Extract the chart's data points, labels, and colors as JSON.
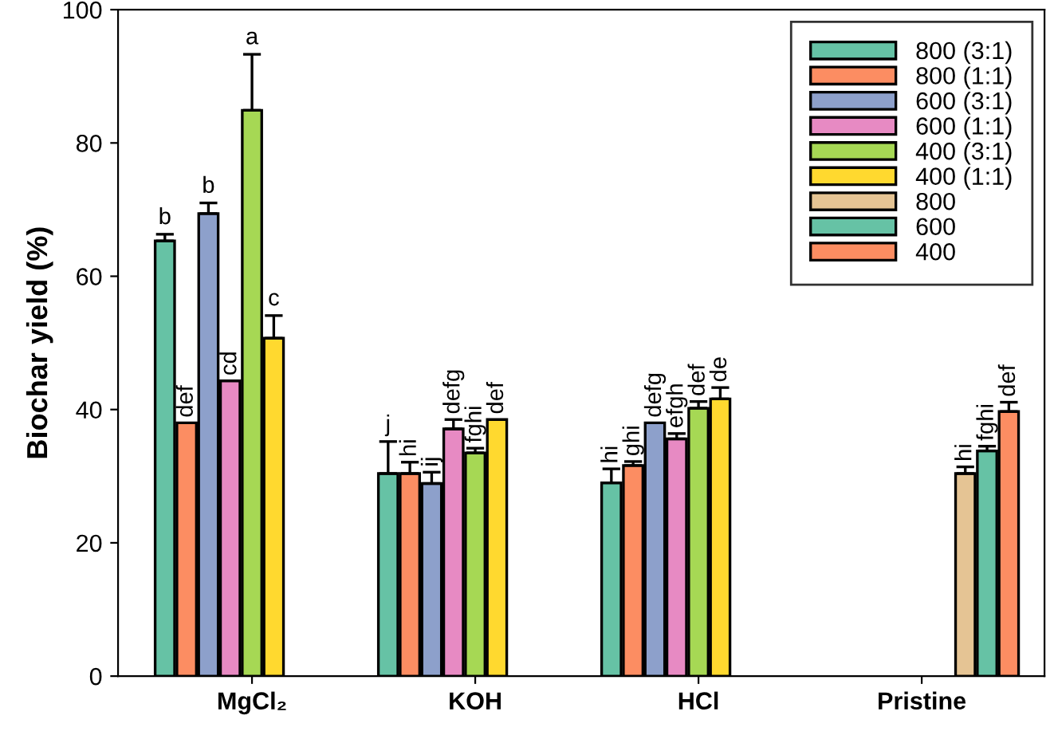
{
  "chart_data": {
    "type": "bar",
    "ylabel": "Biochar yield (%)",
    "categories": [
      "MgCl₂",
      "KOH",
      "HCl",
      "Pristine"
    ],
    "ylim": [
      0,
      100
    ],
    "yticks": [
      0,
      20,
      40,
      60,
      80,
      100
    ],
    "grid": false,
    "legend": "top right",
    "series": [
      {
        "name": "800 (3:1)",
        "color": "#66c2a5",
        "values": [
          65.3,
          30.4,
          29.0,
          null
        ],
        "errors": [
          [
            65.3,
            66.3
          ],
          [
            30.4,
            35.2
          ],
          [
            29.0,
            31.1
          ],
          null
        ],
        "value_labels": [
          "b",
          "j",
          "hi",
          null
        ]
      },
      {
        "name": "800 (1:1)",
        "color": "#fc8d62",
        "values": [
          38.0,
          30.4,
          31.6,
          null
        ],
        "errors": [
          null,
          [
            30.4,
            32.1
          ],
          [
            31.6,
            32.2
          ],
          null
        ],
        "value_labels": [
          "def",
          "hi",
          "ghi",
          null
        ]
      },
      {
        "name": "600 (3:1)",
        "color": "#8da0cb",
        "values": [
          69.4,
          28.9,
          38.0,
          null
        ],
        "errors": [
          [
            69.4,
            71.0
          ],
          [
            28.9,
            30.6
          ],
          null,
          null
        ],
        "value_labels": [
          "b",
          "ij",
          "defg",
          null
        ]
      },
      {
        "name": "600 (1:1)",
        "color": "#e78ac3",
        "values": [
          44.3,
          37.1,
          35.6,
          null
        ],
        "errors": [
          null,
          [
            37.1,
            38.5
          ],
          [
            35.6,
            36.4
          ],
          null
        ],
        "value_labels": [
          "cd",
          "defg",
          "efgh",
          null
        ]
      },
      {
        "name": "400 (3:1)",
        "color": "#a6d854",
        "values": [
          84.9,
          33.5,
          40.2,
          null
        ],
        "errors": [
          [
            84.9,
            93.3
          ],
          [
            33.5,
            34.2
          ],
          [
            40.2,
            41.2
          ],
          null
        ],
        "value_labels": [
          "a",
          "fghi",
          "def",
          null
        ]
      },
      {
        "name": "400 (1:1)",
        "color": "#ffd92f",
        "values": [
          50.7,
          38.5,
          41.6,
          null
        ],
        "errors": [
          [
            50.7,
            54.1
          ],
          null,
          [
            41.6,
            43.3
          ],
          null
        ],
        "value_labels": [
          "c",
          "def",
          "de",
          null
        ]
      },
      {
        "name": "800",
        "color": "#e5c494",
        "values": [
          null,
          null,
          null,
          30.4
        ],
        "errors": [
          null,
          null,
          null,
          [
            30.4,
            31.4
          ]
        ],
        "value_labels": [
          null,
          null,
          null,
          "hi"
        ]
      },
      {
        "name": "600",
        "color": "#66c2a5",
        "values": [
          null,
          null,
          null,
          33.8
        ],
        "errors": [
          null,
          null,
          null,
          [
            33.8,
            34.5
          ]
        ],
        "value_labels": [
          null,
          null,
          null,
          "fghi"
        ]
      },
      {
        "name": "400",
        "color": "#fc8d62",
        "values": [
          null,
          null,
          null,
          39.7
        ],
        "errors": [
          null,
          null,
          null,
          [
            39.7,
            41.1
          ]
        ],
        "value_labels": [
          null,
          null,
          null,
          "def"
        ]
      }
    ]
  }
}
